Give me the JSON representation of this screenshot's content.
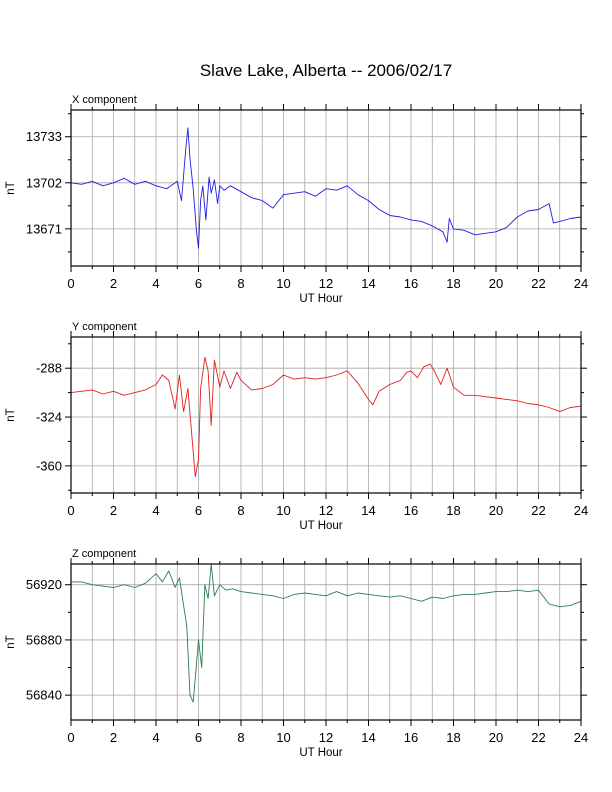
{
  "figure": {
    "title": "Slave Lake, Alberta -- 2006/02/17"
  },
  "chart_data": [
    {
      "type": "line",
      "title": "X component",
      "xlabel": "UT Hour",
      "ylabel": "nT",
      "xlim": [
        0,
        24
      ],
      "ylim": [
        13646,
        13751
      ],
      "xticks": [
        0,
        2,
        4,
        6,
        8,
        10,
        12,
        14,
        16,
        18,
        20,
        22,
        24
      ],
      "xtick_labels": [
        "0",
        "2",
        "4",
        "6",
        "8",
        "10",
        "12",
        "14",
        "16",
        "18",
        "20",
        "22",
        "24"
      ],
      "yticks": [
        13671,
        13702,
        13733
      ],
      "ytick_labels": [
        "13671",
        "13702",
        "13733"
      ],
      "grid": true,
      "series": [
        {
          "color": "#1f1fe0",
          "x": [
            0,
            0.5,
            1,
            1.5,
            2,
            2.5,
            3,
            3.5,
            4,
            4.5,
            5,
            5.2,
            5.4,
            5.5,
            5.6,
            5.75,
            5.9,
            6,
            6.1,
            6.2,
            6.35,
            6.5,
            6.6,
            6.75,
            6.9,
            7,
            7.2,
            7.5,
            8,
            8.5,
            9,
            9.5,
            10,
            10.5,
            11,
            11.5,
            12,
            12.5,
            13,
            13.5,
            14,
            14.5,
            15,
            15.5,
            16,
            16.5,
            17,
            17.5,
            17.7,
            17.8,
            18,
            18.5,
            19,
            19.5,
            20,
            20.5,
            21,
            21.5,
            22,
            22.5,
            22.7,
            23,
            23.5,
            24
          ],
          "values": [
            13702,
            13701,
            13703,
            13700,
            13702,
            13705,
            13701,
            13703,
            13700,
            13698,
            13703,
            13690,
            13725,
            13739,
            13718,
            13698,
            13670,
            13658,
            13690,
            13700,
            13677,
            13706,
            13695,
            13704,
            13688,
            13700,
            13697,
            13700,
            13696,
            13692,
            13690,
            13685,
            13694,
            13695,
            13696,
            13693,
            13698,
            13697,
            13700,
            13694,
            13690,
            13684,
            13680,
            13679,
            13677,
            13676,
            13673,
            13669,
            13662,
            13678,
            13671,
            13670,
            13667,
            13668,
            13669,
            13672,
            13679,
            13683,
            13684,
            13688,
            13675,
            13676,
            13678,
            13679
          ]
        }
      ]
    },
    {
      "type": "line",
      "title": "Y component",
      "xlabel": "UT Hour",
      "ylabel": "nT",
      "xlim": [
        0,
        24
      ],
      "ylim": [
        -380,
        -265
      ],
      "xticks": [
        0,
        2,
        4,
        6,
        8,
        10,
        12,
        14,
        16,
        18,
        20,
        22,
        24
      ],
      "xtick_labels": [
        "0",
        "2",
        "4",
        "6",
        "8",
        "10",
        "12",
        "14",
        "16",
        "18",
        "20",
        "22",
        "24"
      ],
      "yticks": [
        -288,
        -324,
        -360
      ],
      "ytick_labels": [
        "-288",
        "-324",
        "-360"
      ],
      "grid": true,
      "series": [
        {
          "color": "#e02020",
          "x": [
            0,
            0.5,
            1,
            1.5,
            2,
            2.5,
            3,
            3.5,
            4,
            4.3,
            4.6,
            4.9,
            5.1,
            5.3,
            5.5,
            5.7,
            5.85,
            6,
            6.1,
            6.3,
            6.45,
            6.6,
            6.75,
            7,
            7.2,
            7.5,
            7.8,
            8,
            8.5,
            9,
            9.5,
            10,
            10.5,
            11,
            11.5,
            12,
            12.5,
            13,
            13.5,
            14,
            14.2,
            14.5,
            15,
            15.5,
            15.8,
            16,
            16.3,
            16.6,
            16.9,
            17.1,
            17.4,
            17.7,
            18,
            18.5,
            19,
            19.5,
            20,
            20.5,
            21,
            21.5,
            22,
            22.5,
            23,
            23.5,
            24
          ],
          "values": [
            -306,
            -305,
            -304,
            -307,
            -305,
            -308,
            -306,
            -304,
            -300,
            -293,
            -297,
            -318,
            -293,
            -320,
            -303,
            -340,
            -368,
            -355,
            -303,
            -280,
            -290,
            -330,
            -282,
            -302,
            -290,
            -303,
            -291,
            -297,
            -304,
            -303,
            -300,
            -293,
            -296,
            -295,
            -296,
            -295,
            -293,
            -290,
            -299,
            -311,
            -315,
            -305,
            -300,
            -297,
            -291,
            -290,
            -295,
            -287,
            -285,
            -290,
            -300,
            -288,
            -302,
            -308,
            -308,
            -309,
            -310,
            -311,
            -312,
            -314,
            -315,
            -317,
            -320,
            -317,
            -316
          ]
        }
      ]
    },
    {
      "type": "line",
      "title": "Z component",
      "xlabel": "UT Hour",
      "ylabel": "nT",
      "xlim": [
        0,
        24
      ],
      "ylim": [
        56822,
        56935
      ],
      "xticks": [
        0,
        2,
        4,
        6,
        8,
        10,
        12,
        14,
        16,
        18,
        20,
        22,
        24
      ],
      "xtick_labels": [
        "0",
        "2",
        "4",
        "6",
        "8",
        "10",
        "12",
        "14",
        "16",
        "18",
        "20",
        "22",
        "24"
      ],
      "yticks": [
        56840,
        56880,
        56920
      ],
      "ytick_labels": [
        "56840",
        "56880",
        "56920"
      ],
      "grid": true,
      "series": [
        {
          "color": "#2e7d4f",
          "x": [
            0,
            0.5,
            1,
            1.5,
            2,
            2.5,
            3,
            3.5,
            4,
            4.3,
            4.6,
            4.9,
            5.1,
            5.3,
            5.45,
            5.6,
            5.75,
            5.9,
            6,
            6.15,
            6.3,
            6.45,
            6.6,
            6.75,
            7,
            7.3,
            7.6,
            8,
            8.5,
            9,
            9.5,
            10,
            10.5,
            11,
            11.5,
            12,
            12.5,
            13,
            13.5,
            14,
            14.5,
            15,
            15.5,
            16,
            16.5,
            17,
            17.5,
            18,
            18.5,
            19,
            19.5,
            20,
            20.5,
            21,
            21.5,
            22,
            22.5,
            23,
            23.5,
            24
          ],
          "values": [
            56922,
            56922,
            56920,
            56919,
            56918,
            56920,
            56918,
            56921,
            56928,
            56922,
            56930,
            56918,
            56925,
            56905,
            56890,
            56840,
            56835,
            56862,
            56880,
            56860,
            56920,
            56910,
            56935,
            56912,
            56920,
            56916,
            56917,
            56915,
            56914,
            56913,
            56912,
            56910,
            56913,
            56914,
            56913,
            56912,
            56915,
            56912,
            56914,
            56913,
            56912,
            56911,
            56912,
            56910,
            56908,
            56911,
            56910,
            56912,
            56913,
            56913,
            56914,
            56915,
            56915,
            56916,
            56915,
            56916,
            56906,
            56904,
            56905,
            56908
          ]
        }
      ]
    }
  ]
}
